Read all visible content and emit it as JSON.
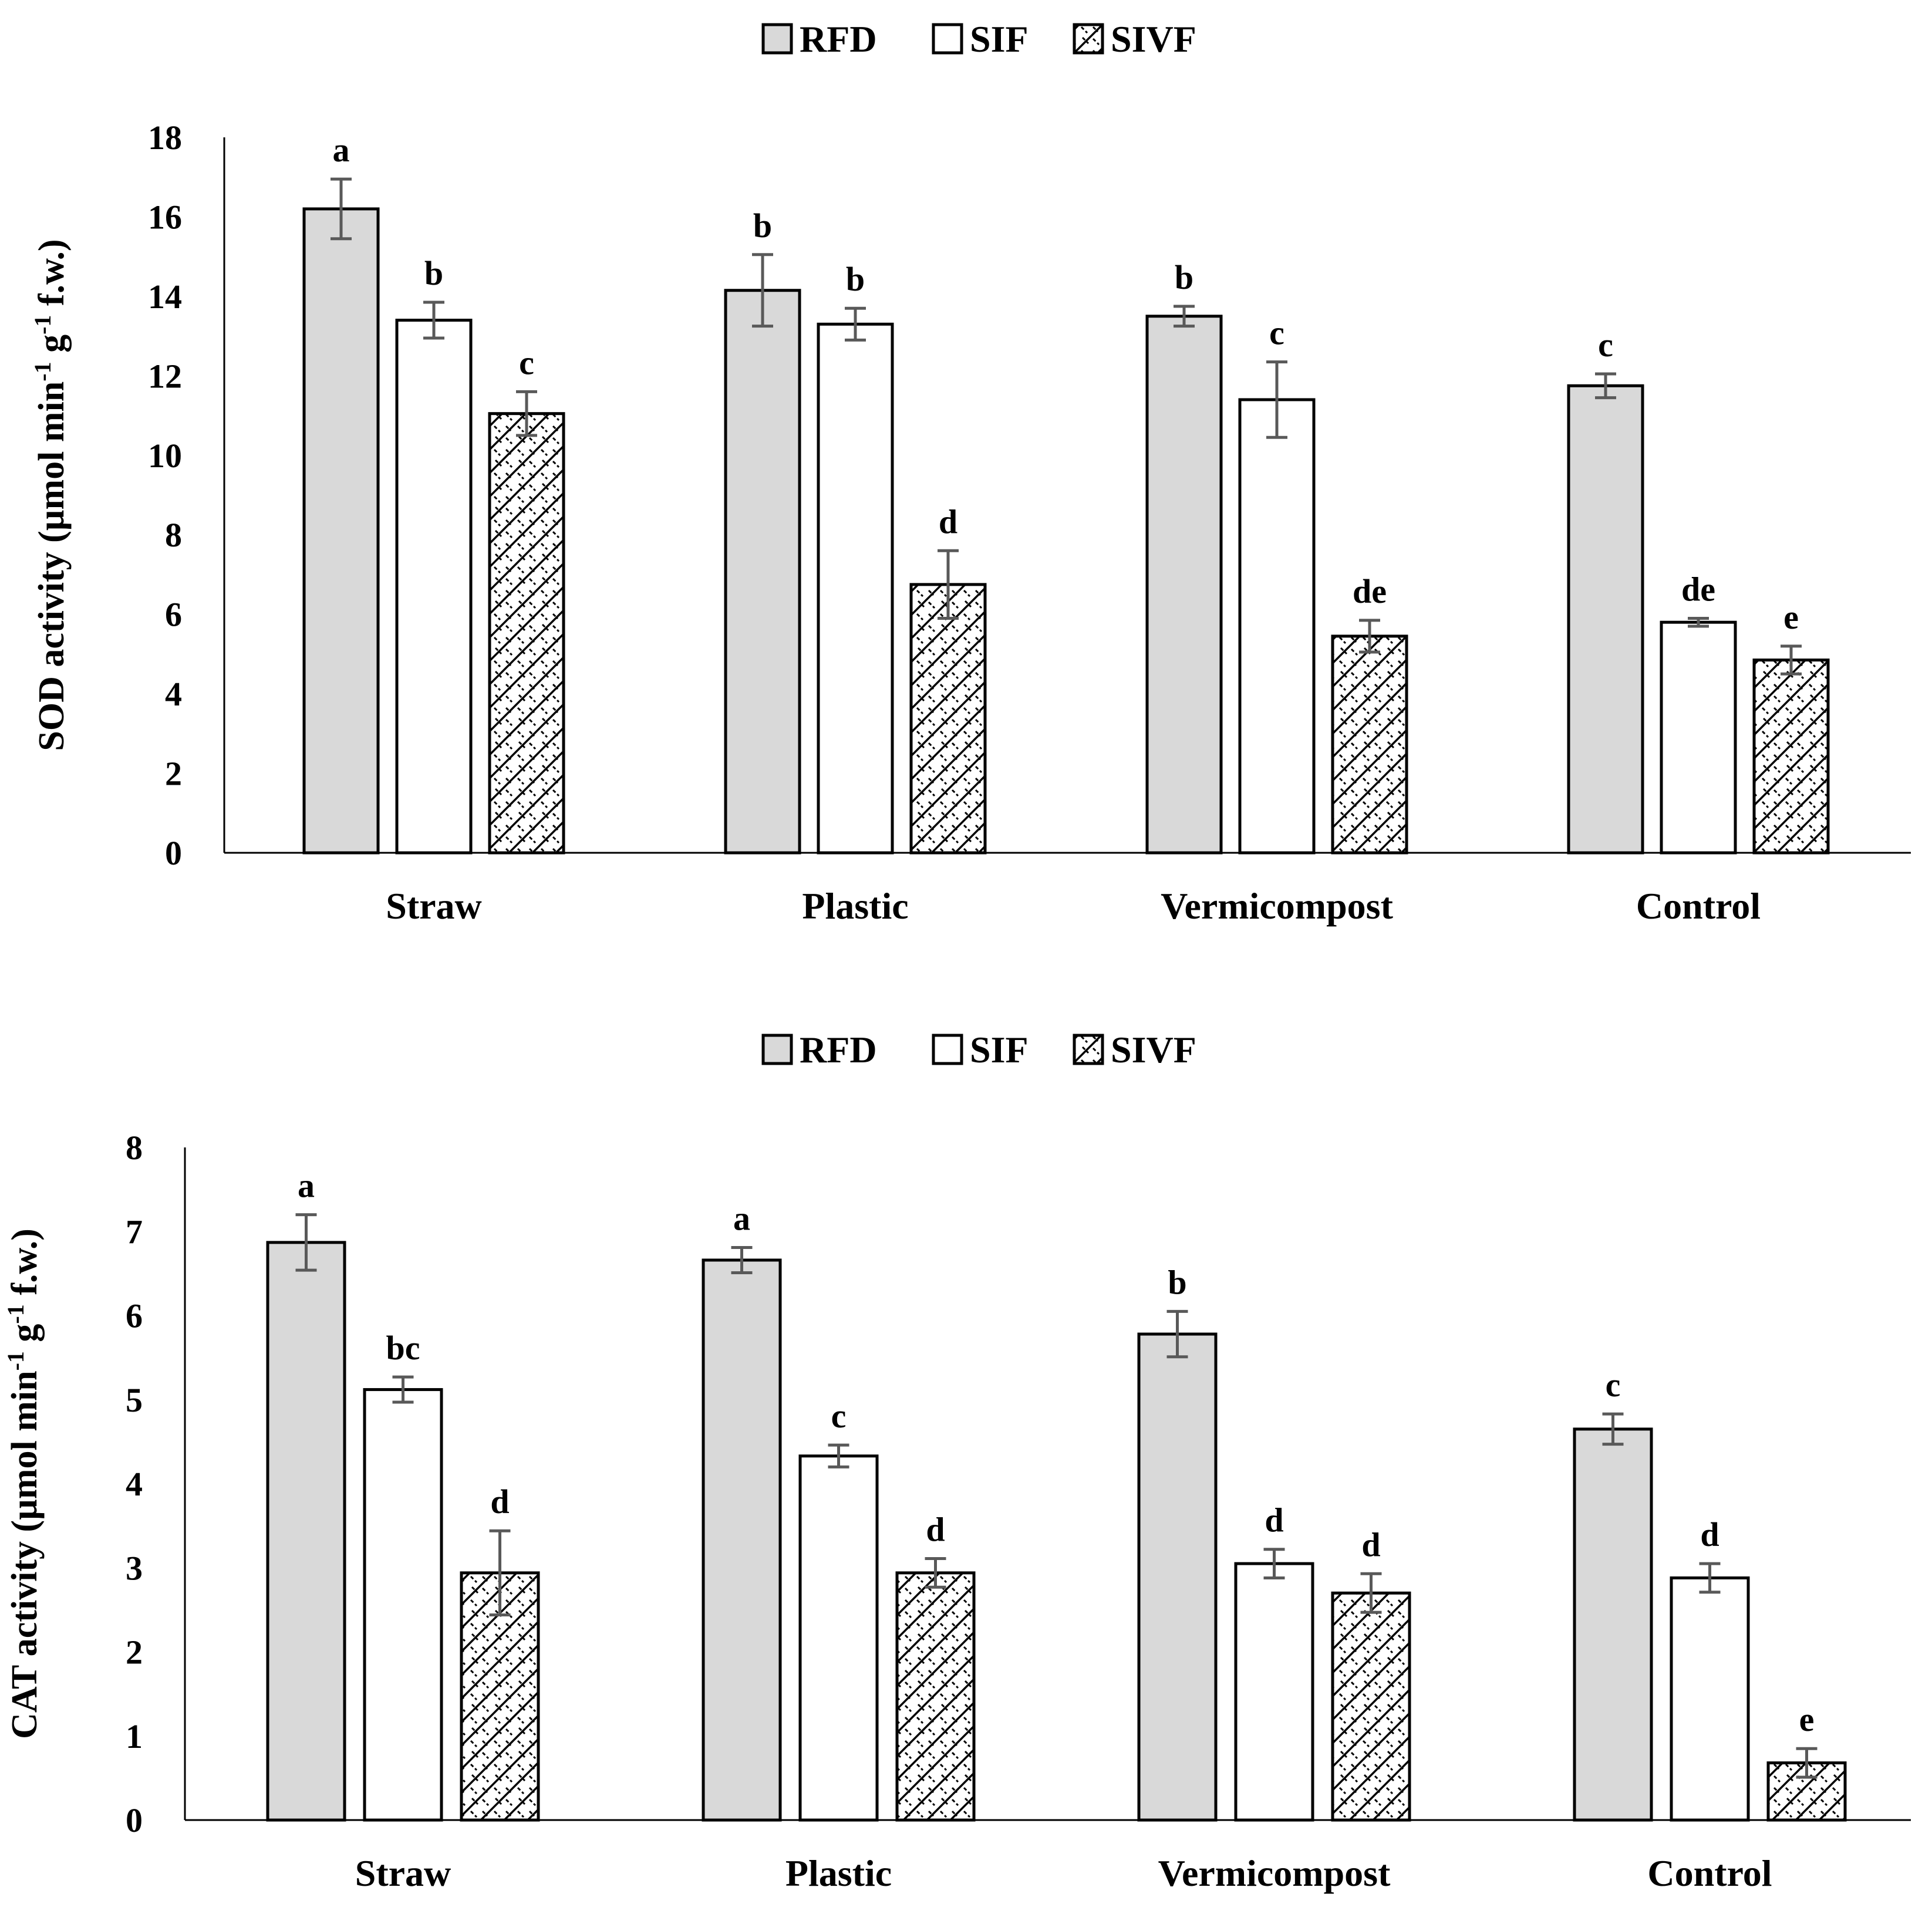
{
  "chart_data": [
    {
      "type": "bar",
      "id": "sod",
      "title": "",
      "xlabel": "",
      "ylabel": {
        "before": "SOD activity (µmol min",
        "sup1": "-1",
        "mid": " g",
        "sup2": "-1",
        "after": " f.w.)"
      },
      "ylim": [
        0,
        18
      ],
      "yticks": [
        0,
        2,
        4,
        6,
        8,
        10,
        12,
        14,
        16,
        18
      ],
      "categories": [
        "Straw",
        "Plastic",
        "Vermicompost",
        "Control"
      ],
      "legend": {
        "position": "top-center",
        "labels": [
          "RFD",
          "SIF",
          "SIVF"
        ]
      },
      "series": [
        {
          "name": "RFD",
          "style": "gray",
          "values": [
            16.2,
            14.15,
            13.5,
            11.75
          ],
          "errors": [
            0.75,
            0.9,
            0.25,
            0.3
          ],
          "letters": [
            "a",
            "b",
            "b",
            "c"
          ]
        },
        {
          "name": "SIF",
          "style": "white",
          "values": [
            13.4,
            13.3,
            11.4,
            5.8
          ],
          "errors": [
            0.45,
            0.4,
            0.95,
            0.1
          ],
          "letters": [
            "b",
            "b",
            "c",
            "de"
          ]
        },
        {
          "name": "SIVF",
          "style": "hatch",
          "values": [
            11.05,
            6.75,
            5.45,
            4.85
          ],
          "errors": [
            0.55,
            0.85,
            0.4,
            0.35
          ],
          "letters": [
            "c",
            "d",
            "de",
            "e"
          ]
        }
      ]
    },
    {
      "type": "bar",
      "id": "cat",
      "title": "",
      "xlabel": "",
      "ylabel": {
        "before": "CAT activity (µmol min",
        "sup1": "-1",
        "mid": " g",
        "sup2": "-1",
        "after": " f.w.)"
      },
      "ylim": [
        0,
        8
      ],
      "yticks": [
        0,
        1,
        2,
        3,
        4,
        5,
        6,
        7,
        8
      ],
      "categories": [
        "Straw",
        "Plastic",
        "Vermicompost",
        "Control"
      ],
      "legend": {
        "position": "top-center",
        "labels": [
          "RFD",
          "SIF",
          "SIVF"
        ]
      },
      "series": [
        {
          "name": "RFD",
          "style": "gray",
          "values": [
            6.87,
            6.66,
            5.78,
            4.65
          ],
          "errors": [
            0.33,
            0.15,
            0.27,
            0.18
          ],
          "letters": [
            "a",
            "a",
            "b",
            "c"
          ]
        },
        {
          "name": "SIF",
          "style": "white",
          "values": [
            5.12,
            4.33,
            3.05,
            2.88
          ],
          "errors": [
            0.15,
            0.13,
            0.17,
            0.17
          ],
          "letters": [
            "bc",
            "c",
            "d",
            "d"
          ]
        },
        {
          "name": "SIVF",
          "style": "hatch",
          "values": [
            2.94,
            2.94,
            2.7,
            0.68
          ],
          "errors": [
            0.5,
            0.17,
            0.23,
            0.17
          ],
          "letters": [
            "d",
            "d",
            "d",
            "e"
          ]
        }
      ]
    }
  ]
}
